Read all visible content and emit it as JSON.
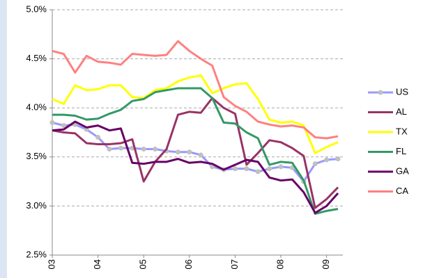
{
  "chart_data": {
    "type": "line",
    "categories": [
      "03",
      null,
      null,
      null,
      "04",
      null,
      null,
      null,
      "05",
      null,
      null,
      null,
      "06",
      null,
      null,
      null,
      "07",
      null,
      null,
      null,
      "08",
      null,
      null,
      null,
      "09",
      null
    ],
    "series": [
      {
        "name": "US",
        "color": "#9999ff",
        "marker_color": "#c0c0c0",
        "values": [
          3.85,
          3.82,
          3.83,
          3.78,
          3.7,
          3.58,
          3.59,
          3.59,
          3.58,
          3.58,
          3.56,
          3.55,
          3.55,
          3.52,
          3.4,
          3.37,
          3.38,
          3.38,
          3.35,
          3.38,
          3.4,
          3.39,
          3.25,
          3.43,
          3.47,
          3.48
        ]
      },
      {
        "name": "AL",
        "color": "#993366",
        "values": [
          3.77,
          3.75,
          3.74,
          3.64,
          3.63,
          3.63,
          3.64,
          3.68,
          3.25,
          3.45,
          3.58,
          3.93,
          3.96,
          3.95,
          4.1,
          4.0,
          3.94,
          3.42,
          3.54,
          3.67,
          3.65,
          3.59,
          3.51,
          2.98,
          3.07,
          3.19
        ]
      },
      {
        "name": "TX",
        "color": "#ffff00",
        "values": [
          4.09,
          4.04,
          4.23,
          4.18,
          4.19,
          4.23,
          4.23,
          4.11,
          4.1,
          4.18,
          4.2,
          4.27,
          4.31,
          4.33,
          4.15,
          4.2,
          4.24,
          4.25,
          4.09,
          3.88,
          3.85,
          3.86,
          3.82,
          3.54,
          3.6,
          3.65
        ]
      },
      {
        "name": "FL",
        "color": "#339966",
        "values": [
          3.93,
          3.93,
          3.92,
          3.88,
          3.89,
          3.94,
          3.98,
          4.07,
          4.09,
          4.16,
          4.18,
          4.2,
          4.2,
          4.2,
          4.1,
          3.85,
          3.84,
          3.75,
          3.69,
          3.42,
          3.45,
          3.44,
          3.26,
          2.92,
          2.95,
          2.97
        ]
      },
      {
        "name": "GA",
        "color": "#660066",
        "values": [
          3.77,
          3.78,
          3.86,
          3.8,
          3.82,
          3.77,
          3.79,
          3.44,
          3.43,
          3.45,
          3.45,
          3.48,
          3.44,
          3.45,
          3.43,
          3.37,
          3.42,
          3.47,
          3.45,
          3.29,
          3.26,
          3.27,
          3.14,
          2.93,
          3.0,
          3.13
        ]
      },
      {
        "name": "CA",
        "color": "#ff8080",
        "values": [
          4.58,
          4.55,
          4.36,
          4.53,
          4.47,
          4.46,
          4.44,
          4.55,
          4.54,
          4.53,
          4.54,
          4.68,
          4.58,
          4.5,
          4.43,
          4.11,
          4.02,
          3.96,
          3.86,
          3.83,
          3.81,
          3.82,
          3.8,
          3.7,
          3.69,
          3.71
        ]
      }
    ],
    "ylim": [
      2.5,
      5.0
    ],
    "yticks": [
      {
        "value": 2.5,
        "label": "2.5%"
      },
      {
        "value": 3.0,
        "label": "3.0%"
      },
      {
        "value": 3.5,
        "label": "3.5%"
      },
      {
        "value": 4.0,
        "label": "4.0%"
      },
      {
        "value": 4.5,
        "label": "4.5%"
      },
      {
        "value": 5.0,
        "label": "5.0%"
      }
    ],
    "grid": true,
    "legend": "right"
  }
}
